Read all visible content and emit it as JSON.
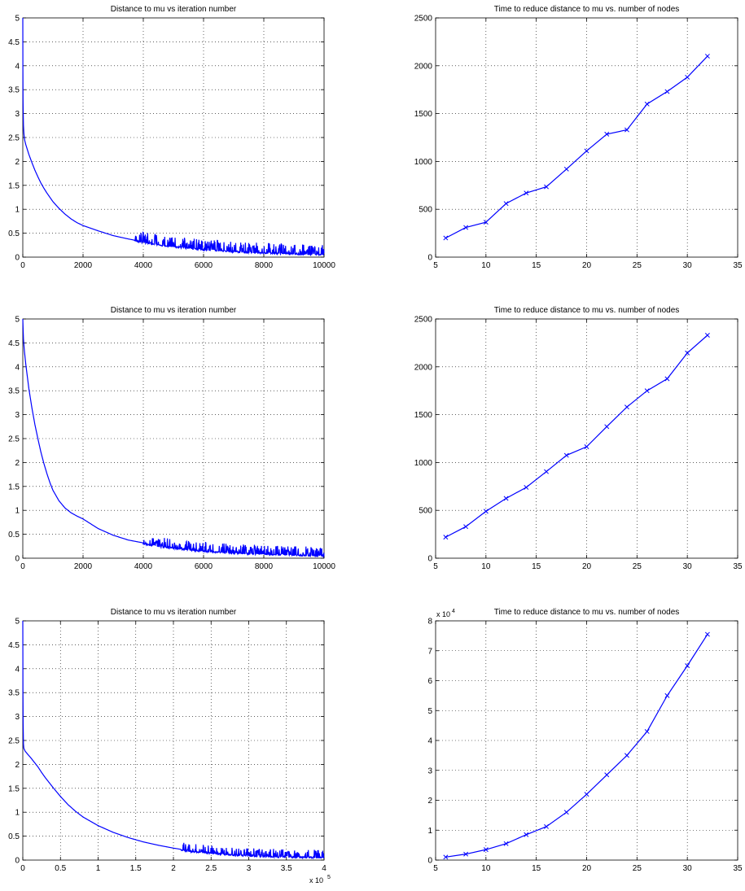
{
  "colors": {
    "series": "#0000ff",
    "axis": "#000000",
    "background": "#ffffff"
  },
  "chart_data": [
    {
      "id": "p1",
      "type": "line",
      "title": "Distance to mu vs iteration number",
      "xlabel": "",
      "ylabel": "",
      "xlim": [
        0,
        10000
      ],
      "ylim": [
        0,
        5
      ],
      "xticks": [
        0,
        2000,
        4000,
        6000,
        8000,
        10000
      ],
      "yticks": [
        0,
        0.5,
        1,
        1.5,
        2,
        2.5,
        3,
        3.5,
        4,
        4.5,
        5
      ],
      "x_exponent": "",
      "grid": true,
      "series": [
        {
          "x": [
            0,
            3,
            8,
            15,
            25,
            40,
            60,
            100,
            150,
            200,
            300,
            400,
            500,
            600,
            700,
            800,
            900,
            1000,
            1200,
            1400,
            1600,
            1800,
            2000,
            2500,
            3000,
            3500,
            4000,
            4500,
            5000,
            5500,
            6000,
            6500,
            7000,
            7500,
            8000,
            8500,
            9000,
            9500,
            10000
          ],
          "y": [
            5.0,
            4.0,
            3.3,
            2.9,
            2.7,
            2.55,
            2.45,
            2.35,
            2.25,
            2.15,
            1.98,
            1.82,
            1.68,
            1.55,
            1.44,
            1.34,
            1.25,
            1.16,
            1.02,
            0.9,
            0.8,
            0.72,
            0.66,
            0.55,
            0.45,
            0.38,
            0.32,
            0.27,
            0.23,
            0.2,
            0.17,
            0.15,
            0.13,
            0.11,
            0.1,
            0.09,
            0.08,
            0.07,
            0.06
          ]
        }
      ],
      "noise": {
        "from": 3700,
        "amplitude": 0.2
      }
    },
    {
      "id": "p2",
      "type": "line",
      "title": "Time to reduce distance to mu vs. number of nodes",
      "xlabel": "",
      "ylabel": "",
      "xlim": [
        5,
        35
      ],
      "ylim": [
        0,
        2500
      ],
      "xticks": [
        5,
        10,
        15,
        20,
        25,
        30,
        35
      ],
      "yticks": [
        0,
        500,
        1000,
        1500,
        2000,
        2500
      ],
      "y_exponent": "",
      "grid": true,
      "marker": "x",
      "series": [
        {
          "x": [
            6,
            8,
            10,
            12,
            14,
            16,
            18,
            20,
            22,
            24,
            26,
            28,
            30,
            32
          ],
          "y": [
            200,
            310,
            365,
            560,
            670,
            735,
            920,
            1110,
            1285,
            1330,
            1600,
            1730,
            1880,
            2100
          ]
        }
      ]
    },
    {
      "id": "p3",
      "type": "line",
      "title": "Distance to mu vs iteration number",
      "xlabel": "",
      "ylabel": "",
      "xlim": [
        0,
        10000
      ],
      "ylim": [
        0,
        5
      ],
      "xticks": [
        0,
        2000,
        4000,
        6000,
        8000,
        10000
      ],
      "yticks": [
        0,
        0.5,
        1,
        1.5,
        2,
        2.5,
        3,
        3.5,
        4,
        4.5,
        5
      ],
      "x_exponent": "",
      "grid": true,
      "series": [
        {
          "x": [
            0,
            20,
            50,
            100,
            150,
            200,
            300,
            400,
            500,
            600,
            700,
            800,
            900,
            1000,
            1200,
            1400,
            1600,
            1800,
            2000,
            2500,
            3000,
            3500,
            4000,
            4500,
            5000,
            5500,
            6000,
            6500,
            7000,
            7500,
            8000,
            8500,
            9000,
            9500,
            10000
          ],
          "y": [
            5.0,
            4.6,
            4.35,
            4.05,
            3.8,
            3.55,
            3.15,
            2.8,
            2.5,
            2.22,
            1.98,
            1.77,
            1.58,
            1.42,
            1.2,
            1.05,
            0.95,
            0.88,
            0.82,
            0.62,
            0.48,
            0.38,
            0.32,
            0.26,
            0.22,
            0.19,
            0.16,
            0.14,
            0.12,
            0.11,
            0.1,
            0.09,
            0.08,
            0.07,
            0.06
          ]
        }
      ],
      "noise": {
        "from": 4000,
        "amplitude": 0.18
      }
    },
    {
      "id": "p4",
      "type": "line",
      "title": "Time to reduce distance to mu vs. number of nodes",
      "xlabel": "",
      "ylabel": "",
      "xlim": [
        5,
        35
      ],
      "ylim": [
        0,
        2500
      ],
      "xticks": [
        5,
        10,
        15,
        20,
        25,
        30,
        35
      ],
      "yticks": [
        0,
        500,
        1000,
        1500,
        2000,
        2500
      ],
      "y_exponent": "",
      "grid": true,
      "marker": "x",
      "series": [
        {
          "x": [
            6,
            8,
            10,
            12,
            14,
            16,
            18,
            20,
            22,
            24,
            26,
            28,
            30,
            32
          ],
          "y": [
            220,
            330,
            490,
            625,
            740,
            905,
            1075,
            1165,
            1375,
            1580,
            1750,
            1875,
            2145,
            2330
          ]
        }
      ]
    },
    {
      "id": "p5",
      "type": "line",
      "title": "Distance to mu vs iteration number",
      "xlabel": "",
      "ylabel": "",
      "xlim": [
        0,
        4
      ],
      "ylim": [
        0,
        5
      ],
      "xticks": [
        0,
        0.5,
        1,
        1.5,
        2,
        2.5,
        3,
        3.5,
        4
      ],
      "yticks": [
        0,
        0.5,
        1,
        1.5,
        2,
        2.5,
        3,
        3.5,
        4,
        4.5,
        5
      ],
      "x_exponent": {
        "base": "x 10",
        "power": "5"
      },
      "grid": true,
      "series": [
        {
          "x": [
            0,
            0.002,
            0.005,
            0.01,
            0.03,
            0.06,
            0.1,
            0.15,
            0.2,
            0.25,
            0.3,
            0.35,
            0.4,
            0.5,
            0.6,
            0.7,
            0.8,
            1.0,
            1.2,
            1.4,
            1.6,
            1.8,
            2.0,
            2.2,
            2.4,
            2.6,
            2.8,
            3.0,
            3.2,
            3.4,
            3.6,
            3.8,
            4.0
          ],
          "y": [
            5.0,
            3.6,
            2.7,
            2.35,
            2.28,
            2.22,
            2.15,
            2.05,
            1.95,
            1.83,
            1.72,
            1.62,
            1.52,
            1.33,
            1.16,
            1.02,
            0.9,
            0.72,
            0.58,
            0.47,
            0.38,
            0.31,
            0.25,
            0.2,
            0.17,
            0.14,
            0.12,
            0.1,
            0.09,
            0.08,
            0.07,
            0.07,
            0.06
          ]
        }
      ],
      "noise": {
        "from": 2.1,
        "amplitude": 0.15
      }
    },
    {
      "id": "p6",
      "type": "line",
      "title": "Time to reduce distance to mu vs. number of nodes",
      "xlabel": "",
      "ylabel": "",
      "xlim": [
        5,
        35
      ],
      "ylim": [
        0,
        8
      ],
      "xticks": [
        5,
        10,
        15,
        20,
        25,
        30,
        35
      ],
      "yticks": [
        0,
        1,
        2,
        3,
        4,
        5,
        6,
        7,
        8
      ],
      "y_exponent": {
        "base": "x 10",
        "power": "4"
      },
      "grid": true,
      "marker": "x",
      "series": [
        {
          "x": [
            6,
            8,
            10,
            12,
            14,
            16,
            18,
            20,
            22,
            24,
            26,
            28,
            30,
            32
          ],
          "y": [
            0.1,
            0.2,
            0.35,
            0.55,
            0.85,
            1.12,
            1.6,
            2.2,
            2.85,
            3.5,
            4.3,
            5.5,
            6.5,
            7.55
          ]
        }
      ]
    }
  ]
}
